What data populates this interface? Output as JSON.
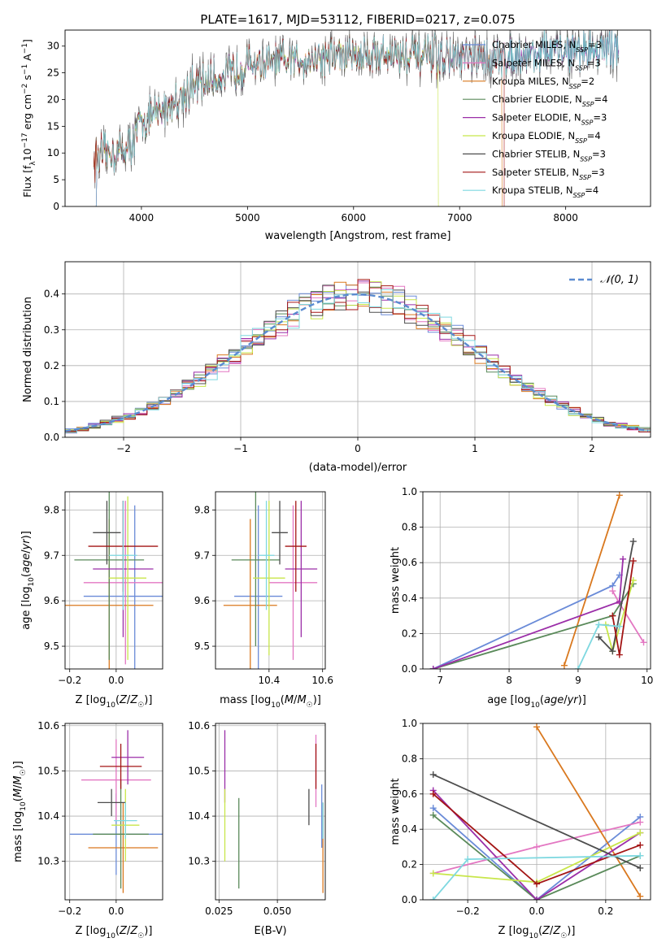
{
  "figure_title": "PLATE=1617, MJD=53112, FIBERID=0217, z=0.075",
  "colors": {
    "cm": "#6a8bd8",
    "sm": "#e377c2",
    "km": "#d9781e",
    "ce": "#5a8a5a",
    "se": "#9b2ea8",
    "ke": "#c8e64a",
    "cs": "#4d4d4d",
    "ss": "#a31515",
    "ks": "#7ed8e0"
  },
  "chart_data": [
    {
      "type": "line",
      "title": "PLATE=1617, MJD=53112, FIBERID=0217, z=0.075",
      "xlabel": "wavelength [Angstrom, rest frame]",
      "ylabel": "Flux [f_λ10^-17 erg cm^-2 s^-1 A^-1]",
      "xlim": [
        3280,
        8800
      ],
      "ylim": [
        0,
        33
      ],
      "xticks": [
        "4000",
        "5000",
        "6000",
        "7000",
        "8000"
      ],
      "yticks": [
        "0",
        "5",
        "10",
        "15",
        "20",
        "25",
        "30"
      ],
      "legend_loc": "upper-right",
      "series": [
        {
          "key": "cm",
          "name": "Chabrier MILES, N",
          "nssp": "=3"
        },
        {
          "key": "sm",
          "name": "Salpeter MILES, N",
          "nssp": "=3"
        },
        {
          "key": "km",
          "name": "Kroupa MILES, N",
          "nssp": "=2"
        },
        {
          "key": "ce",
          "name": "Chabrier ELODIE, N",
          "nssp": "=4"
        },
        {
          "key": "se",
          "name": "Salpeter ELODIE, N",
          "nssp": "=3"
        },
        {
          "key": "ke",
          "name": "Kroupa ELODIE, N",
          "nssp": "=4"
        },
        {
          "key": "cs",
          "name": "Chabrier STELIB, N",
          "nssp": "=3"
        },
        {
          "key": "ss",
          "name": "Salpeter STELIB, N",
          "nssp": "=3"
        },
        {
          "key": "ks",
          "name": "Kroupa STELIB, N",
          "nssp": "=4"
        }
      ],
      "subscript": "SSP",
      "continuum": [
        [
          3550,
          9
        ],
        [
          3700,
          10
        ],
        [
          3800,
          10.5
        ],
        [
          3900,
          11.5
        ],
        [
          3950,
          14
        ],
        [
          4000,
          16
        ],
        [
          4100,
          17
        ],
        [
          4200,
          18
        ],
        [
          4300,
          19.5
        ],
        [
          4400,
          21
        ],
        [
          4500,
          22.5
        ],
        [
          4600,
          23.5
        ],
        [
          4700,
          24
        ],
        [
          4800,
          24.5
        ],
        [
          4900,
          25.5
        ],
        [
          5000,
          26.5
        ],
        [
          5100,
          27
        ],
        [
          5200,
          26.5
        ],
        [
          5300,
          27
        ],
        [
          5500,
          27.5
        ],
        [
          5700,
          28
        ],
        [
          6000,
          28.5
        ],
        [
          6200,
          28.5
        ],
        [
          6400,
          28.5
        ],
        [
          6600,
          28
        ],
        [
          6800,
          28
        ],
        [
          7000,
          27.5
        ],
        [
          7200,
          27.5
        ],
        [
          7400,
          28
        ],
        [
          7600,
          28.5
        ],
        [
          7800,
          29
        ],
        [
          8000,
          29
        ],
        [
          8300,
          29.5
        ],
        [
          8500,
          29.5
        ]
      ]
    },
    {
      "type": "bar",
      "title": "",
      "xlabel": "(data-model)/error",
      "ylabel": "Normed distribution",
      "xlim": [
        -2.5,
        2.5
      ],
      "ylim": [
        0,
        0.49
      ],
      "xticks": [
        "−2",
        "−1",
        "0",
        "1",
        "2"
      ],
      "yticks": [
        "0.0",
        "0.1",
        "0.2",
        "0.3",
        "0.4"
      ],
      "legend": "𝒩(0, 1)",
      "legend_loc": "top-right",
      "bin_width": 0.1,
      "gaussian": {
        "mu": 0,
        "sigma": 1
      }
    },
    {
      "type": "scatter",
      "xlabel": "Z [log10(Z/Z☉)]",
      "ylabel": "age  [log10(age/yr)]",
      "xlim": [
        -0.22,
        0.2
      ],
      "ylim": [
        9.45,
        9.84
      ],
      "xticks": [
        "−0.2",
        "0.0"
      ],
      "yticks": [
        "9.5",
        "9.6",
        "9.7",
        "9.8"
      ],
      "points": [
        {
          "key": "cm",
          "x": 0.08,
          "y": 9.61,
          "xerr": 0.22,
          "yerr": 0.2
        },
        {
          "key": "sm",
          "x": 0.04,
          "y": 9.64,
          "xerr": 0.18,
          "yerr": 0.18
        },
        {
          "key": "km",
          "x": -0.03,
          "y": 9.59,
          "xerr": 0.19,
          "yerr": 0.19
        },
        {
          "key": "ce",
          "x": -0.03,
          "y": 9.69,
          "xerr": 0.15,
          "yerr": 0.22
        },
        {
          "key": "se",
          "x": 0.03,
          "y": 9.67,
          "xerr": 0.13,
          "yerr": 0.15
        },
        {
          "key": "ke",
          "x": 0.05,
          "y": 9.65,
          "xerr": 0.08,
          "yerr": 0.18
        },
        {
          "key": "cs",
          "x": -0.04,
          "y": 9.75,
          "xerr": 0.06,
          "yerr": 0.07
        },
        {
          "key": "ss",
          "x": 0.03,
          "y": 9.72,
          "xerr": 0.15,
          "yerr": 0.1
        },
        {
          "key": "ks",
          "x": 0.03,
          "y": 9.7,
          "xerr": 0.06,
          "yerr": 0.12
        }
      ]
    },
    {
      "type": "scatter",
      "xlabel": "mass [log10(M/M☉)]",
      "ylabel": "",
      "xlim": [
        10.2,
        10.61
      ],
      "ylim": [
        9.45,
        9.84
      ],
      "xticks": [
        "10.4",
        "10.6"
      ],
      "yticks": [
        "9.5",
        "9.6",
        "9.7",
        "9.8"
      ],
      "points": [
        {
          "key": "cm",
          "x": 10.36,
          "y": 9.61,
          "xerr": 0.09,
          "yerr": 0.2
        },
        {
          "key": "sm",
          "x": 10.49,
          "y": 9.64,
          "xerr": 0.09,
          "yerr": 0.17
        },
        {
          "key": "km",
          "x": 10.33,
          "y": 9.59,
          "xerr": 0.1,
          "yerr": 0.19
        },
        {
          "key": "ce",
          "x": 10.35,
          "y": 9.69,
          "xerr": 0.09,
          "yerr": 0.19
        },
        {
          "key": "se",
          "x": 10.52,
          "y": 9.67,
          "xerr": 0.06,
          "yerr": 0.15
        },
        {
          "key": "ke",
          "x": 10.4,
          "y": 9.65,
          "xerr": 0.06,
          "yerr": 0.17
        },
        {
          "key": "cs",
          "x": 10.44,
          "y": 9.75,
          "xerr": 0.03,
          "yerr": 0.07
        },
        {
          "key": "ss",
          "x": 10.5,
          "y": 9.72,
          "xerr": 0.04,
          "yerr": 0.1
        },
        {
          "key": "ks",
          "x": 10.39,
          "y": 9.7,
          "xerr": 0.03,
          "yerr": 0.12
        }
      ]
    },
    {
      "type": "line",
      "xlabel": "age  [log10(age/yr)]",
      "ylabel": "mass weight",
      "xlim": [
        6.75,
        10.05
      ],
      "ylim": [
        0,
        1
      ],
      "xticks": [
        "7",
        "8",
        "9",
        "10"
      ],
      "yticks": [
        "0.0",
        "0.2",
        "0.4",
        "0.6",
        "0.8",
        "1.0"
      ],
      "series": [
        {
          "key": "cm",
          "x": [
            6.9,
            9.5,
            9.6
          ],
          "y": [
            0,
            0.47,
            0.53
          ]
        },
        {
          "key": "sm",
          "x": [
            9.5,
            9.6,
            9.95
          ],
          "y": [
            0.44,
            0.37,
            0.15
          ]
        },
        {
          "key": "km",
          "x": [
            8.8,
            9.6
          ],
          "y": [
            0.02,
            0.98
          ]
        },
        {
          "key": "ce",
          "x": [
            6.9,
            9.5,
            9.8
          ],
          "y": [
            0,
            0.3,
            0.48
          ]
        },
        {
          "key": "se",
          "x": [
            6.9,
            9.6,
            9.65
          ],
          "y": [
            0,
            0.38,
            0.62
          ]
        },
        {
          "key": "ke",
          "x": [
            9.4,
            9.5,
            9.8
          ],
          "y": [
            0.25,
            0.1,
            0.5
          ]
        },
        {
          "key": "cs",
          "x": [
            9.3,
            9.5,
            9.8
          ],
          "y": [
            0.18,
            0.1,
            0.72
          ]
        },
        {
          "key": "ss",
          "x": [
            9.5,
            9.6,
            9.8
          ],
          "y": [
            0.3,
            0.08,
            0.61
          ]
        },
        {
          "key": "ks",
          "x": [
            9.0,
            9.3,
            9.6
          ],
          "y": [
            0,
            0.25,
            0.24
          ]
        }
      ]
    },
    {
      "type": "scatter",
      "xlabel": "Z [log10(Z/Z☉)]",
      "ylabel": "mass [log10(M/M☉)]",
      "xlim": [
        -0.22,
        0.2
      ],
      "ylim": [
        10.215,
        10.605
      ],
      "xticks": [
        "−0.2",
        "0.0"
      ],
      "yticks": [
        "10.3",
        "10.4",
        "10.5",
        "10.6"
      ],
      "points": [
        {
          "key": "cm",
          "x": 0.0,
          "y": 10.36,
          "xerr": 0.2,
          "yerr": 0.09
        },
        {
          "key": "sm",
          "x": 0.0,
          "y": 10.48,
          "xerr": 0.15,
          "yerr": 0.09
        },
        {
          "key": "km",
          "x": 0.03,
          "y": 10.33,
          "xerr": 0.15,
          "yerr": 0.1
        },
        {
          "key": "ce",
          "x": 0.02,
          "y": 10.36,
          "xerr": 0.12,
          "yerr": 0.12
        },
        {
          "key": "se",
          "x": 0.05,
          "y": 10.53,
          "xerr": 0.07,
          "yerr": 0.06
        },
        {
          "key": "ke",
          "x": 0.04,
          "y": 10.38,
          "xerr": 0.06,
          "yerr": 0.08
        },
        {
          "key": "cs",
          "x": -0.02,
          "y": 10.43,
          "xerr": 0.06,
          "yerr": 0.03
        },
        {
          "key": "ss",
          "x": 0.02,
          "y": 10.51,
          "xerr": 0.09,
          "yerr": 0.05
        },
        {
          "key": "ks",
          "x": 0.04,
          "y": 10.39,
          "xerr": 0.05,
          "yerr": 0.04
        }
      ]
    },
    {
      "type": "scatter",
      "xlabel": "E(B-V)",
      "ylabel": "",
      "xlim": [
        0.0235,
        0.0705
      ],
      "ylim": [
        10.215,
        10.605
      ],
      "xticks": [
        "0.025",
        "0.050"
      ],
      "yticks": [
        "10.3",
        "10.4",
        "10.5",
        "10.6"
      ],
      "points": [
        {
          "key": "cm",
          "x": 0.069,
          "y": 10.4,
          "yerr": 0.07
        },
        {
          "key": "sm",
          "x": 0.0665,
          "y": 10.5,
          "yerr": 0.08
        },
        {
          "key": "km",
          "x": 0.0695,
          "y": 10.33,
          "yerr": 0.1
        },
        {
          "key": "ce",
          "x": 0.0335,
          "y": 10.34,
          "yerr": 0.1
        },
        {
          "key": "se",
          "x": 0.0275,
          "y": 10.51,
          "yerr": 0.08
        },
        {
          "key": "ke",
          "x": 0.0275,
          "y": 10.38,
          "yerr": 0.08
        },
        {
          "key": "cs",
          "x": 0.0635,
          "y": 10.42,
          "yerr": 0.04
        },
        {
          "key": "ss",
          "x": 0.0665,
          "y": 10.51,
          "yerr": 0.05
        },
        {
          "key": "ks",
          "x": 0.0695,
          "y": 10.39,
          "yerr": 0.04
        }
      ]
    },
    {
      "type": "line",
      "xlabel": "Z [log10(Z/Z☉)]",
      "ylabel": "mass weight",
      "xlim": [
        -0.33,
        0.33
      ],
      "ylim": [
        0,
        1
      ],
      "xticks": [
        "−0.2",
        "0.0",
        "0.2"
      ],
      "yticks": [
        "0.0",
        "0.2",
        "0.4",
        "0.6",
        "0.8",
        "1.0"
      ],
      "series": [
        {
          "key": "cm",
          "x": [
            -0.3,
            0.0,
            0.3
          ],
          "y": [
            0.52,
            0.0,
            0.47
          ]
        },
        {
          "key": "sm",
          "x": [
            -0.3,
            0.0,
            0.3
          ],
          "y": [
            0.15,
            0.3,
            0.44
          ]
        },
        {
          "key": "km",
          "x": [
            0.0,
            0.3
          ],
          "y": [
            0.98,
            0.02
          ]
        },
        {
          "key": "ce",
          "x": [
            -0.3,
            0.0,
            0.3
          ],
          "y": [
            0.48,
            0.0,
            0.25
          ]
        },
        {
          "key": "se",
          "x": [
            -0.3,
            0.0,
            0.3
          ],
          "y": [
            0.62,
            0.0,
            0.38
          ]
        },
        {
          "key": "ke",
          "x": [
            -0.3,
            0.0,
            0.3
          ],
          "y": [
            0.15,
            0.1,
            0.38
          ]
        },
        {
          "key": "cs",
          "x": [
            -0.3,
            0.3
          ],
          "y": [
            0.71,
            0.18
          ]
        },
        {
          "key": "ss",
          "x": [
            -0.3,
            0.0,
            0.3
          ],
          "y": [
            0.6,
            0.09,
            0.31
          ]
        },
        {
          "key": "ks",
          "x": [
            -0.3,
            -0.2,
            0.3
          ],
          "y": [
            0.0,
            0.23,
            0.25
          ]
        }
      ]
    }
  ]
}
